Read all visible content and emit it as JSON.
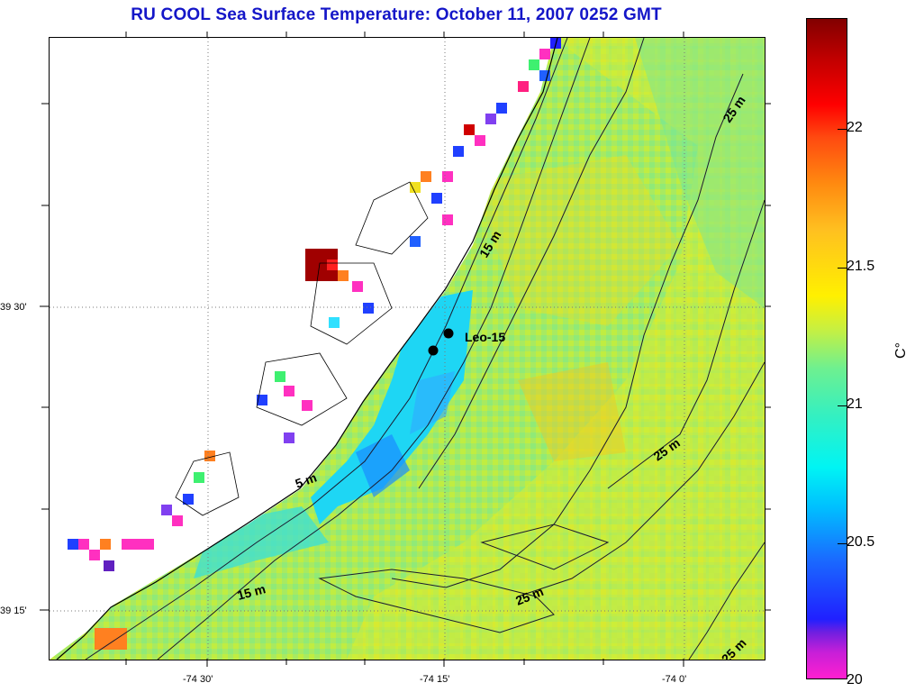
{
  "title": "RU COOL  Sea Surface Temperature:  October 11, 2007 0252 GMT",
  "map": {
    "lat_labels": [
      "39 30'",
      "39 15'"
    ],
    "lon_labels": [
      "-74 30'",
      "-74 15'",
      "-74 0'"
    ],
    "depth_labels": [
      "5 m",
      "15 m",
      "15 m",
      "25 m",
      "25 m",
      "25 m",
      "25 m"
    ],
    "station": {
      "name": "Leo-15"
    },
    "colors": {
      "land": "#ffffff",
      "coastline": "#000000",
      "grid": "#7a7a7a"
    }
  },
  "colorbar": {
    "unit": "C°",
    "ticks": [
      "22",
      "21.5",
      "21",
      "20.5",
      "20"
    ],
    "range": [
      20,
      22.4
    ]
  }
}
